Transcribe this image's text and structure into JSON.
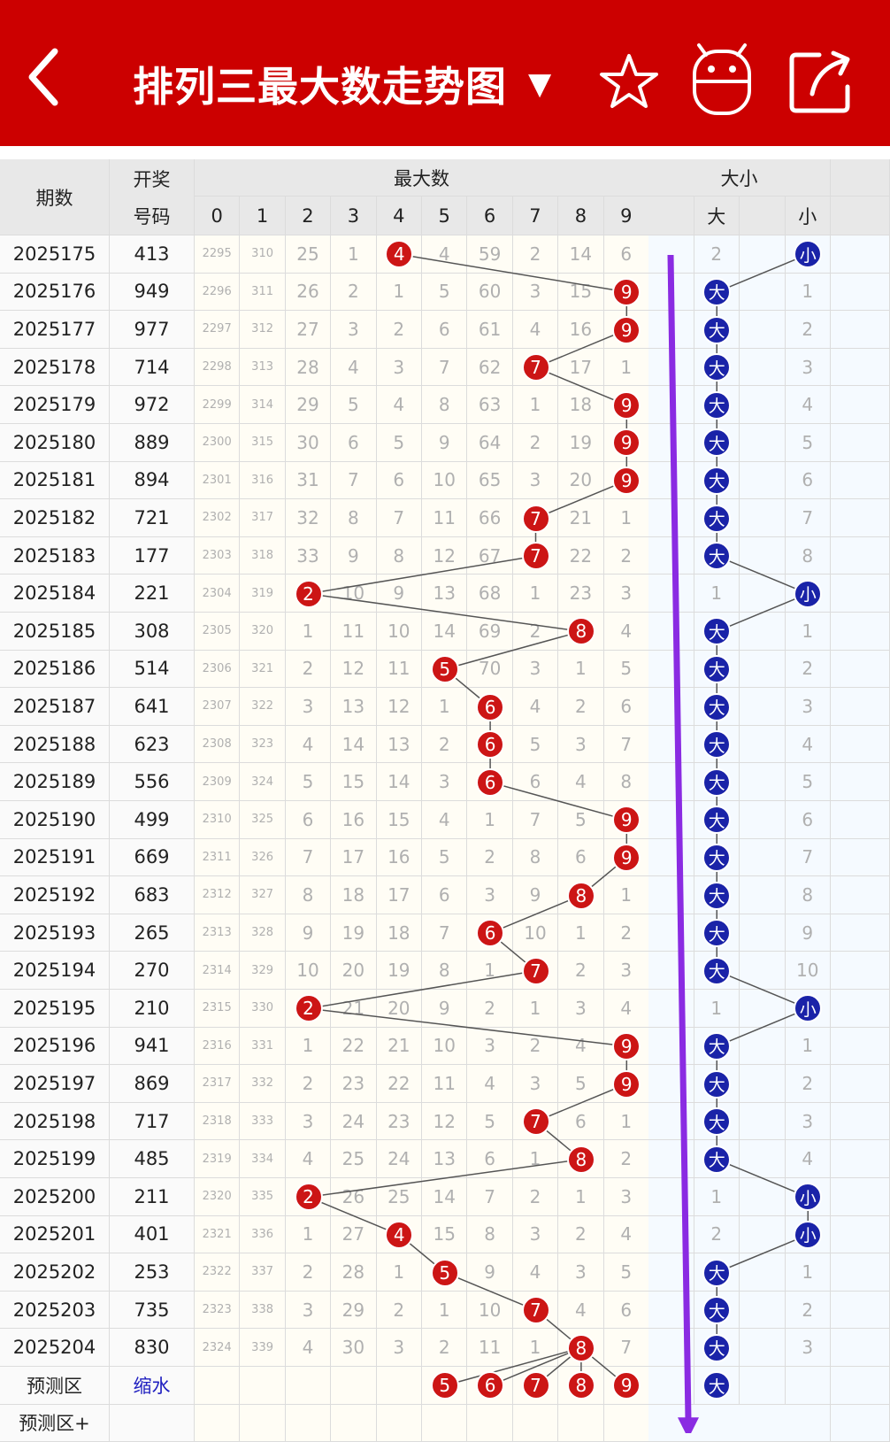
{
  "header": {
    "title": "排列三最大数走势图",
    "dropdown_caret": "▼",
    "icons": [
      "back-arrow-icon",
      "star-icon",
      "android-icon",
      "share-icon"
    ],
    "background": "#cc0000"
  },
  "table": {
    "col_issue": "期数",
    "col_code_line1": "开奖",
    "col_code_line2": "号码",
    "group_max": "最大数",
    "group_size": "大小",
    "digits": [
      "0",
      "1",
      "2",
      "3",
      "4",
      "5",
      "6",
      "7",
      "8",
      "9"
    ],
    "size_labels": [
      "大",
      "小"
    ],
    "rows": [
      {
        "issue": "2025175",
        "code": "413",
        "max": 4,
        "size": "小",
        "miss": [
          "2295",
          "310",
          "25",
          "1",
          "",
          "4",
          "59",
          "2",
          "14",
          "6"
        ],
        "big": "2",
        "small": ""
      },
      {
        "issue": "2025176",
        "code": "949",
        "max": 9,
        "size": "大",
        "miss": [
          "2296",
          "311",
          "26",
          "2",
          "1",
          "5",
          "60",
          "3",
          "15",
          ""
        ],
        "big": "",
        "small": "1"
      },
      {
        "issue": "2025177",
        "code": "977",
        "max": 9,
        "size": "大",
        "miss": [
          "2297",
          "312",
          "27",
          "3",
          "2",
          "6",
          "61",
          "4",
          "16",
          ""
        ],
        "big": "",
        "small": "2"
      },
      {
        "issue": "2025178",
        "code": "714",
        "max": 7,
        "size": "大",
        "miss": [
          "2298",
          "313",
          "28",
          "4",
          "3",
          "7",
          "62",
          "",
          "17",
          "1"
        ],
        "big": "",
        "small": "3"
      },
      {
        "issue": "2025179",
        "code": "972",
        "max": 9,
        "size": "大",
        "miss": [
          "2299",
          "314",
          "29",
          "5",
          "4",
          "8",
          "63",
          "1",
          "18",
          ""
        ],
        "big": "",
        "small": "4"
      },
      {
        "issue": "2025180",
        "code": "889",
        "max": 9,
        "size": "大",
        "miss": [
          "2300",
          "315",
          "30",
          "6",
          "5",
          "9",
          "64",
          "2",
          "19",
          ""
        ],
        "big": "",
        "small": "5"
      },
      {
        "issue": "2025181",
        "code": "894",
        "max": 9,
        "size": "大",
        "miss": [
          "2301",
          "316",
          "31",
          "7",
          "6",
          "10",
          "65",
          "3",
          "20",
          ""
        ],
        "big": "",
        "small": "6"
      },
      {
        "issue": "2025182",
        "code": "721",
        "max": 7,
        "size": "大",
        "miss": [
          "2302",
          "317",
          "32",
          "8",
          "7",
          "11",
          "66",
          "",
          "21",
          "1"
        ],
        "big": "",
        "small": "7"
      },
      {
        "issue": "2025183",
        "code": "177",
        "max": 7,
        "size": "大",
        "miss": [
          "2303",
          "318",
          "33",
          "9",
          "8",
          "12",
          "67",
          "",
          "22",
          "2"
        ],
        "big": "",
        "small": "8"
      },
      {
        "issue": "2025184",
        "code": "221",
        "max": 2,
        "size": "小",
        "miss": [
          "2304",
          "319",
          "",
          "10",
          "9",
          "13",
          "68",
          "1",
          "23",
          "3"
        ],
        "big": "1",
        "small": ""
      },
      {
        "issue": "2025185",
        "code": "308",
        "max": 8,
        "size": "大",
        "miss": [
          "2305",
          "320",
          "1",
          "11",
          "10",
          "14",
          "69",
          "2",
          "",
          "4"
        ],
        "big": "",
        "small": "1"
      },
      {
        "issue": "2025186",
        "code": "514",
        "max": 5,
        "size": "大",
        "miss": [
          "2306",
          "321",
          "2",
          "12",
          "11",
          "",
          "70",
          "3",
          "1",
          "5"
        ],
        "big": "",
        "small": "2"
      },
      {
        "issue": "2025187",
        "code": "641",
        "max": 6,
        "size": "大",
        "miss": [
          "2307",
          "322",
          "3",
          "13",
          "12",
          "1",
          "",
          "4",
          "2",
          "6"
        ],
        "big": "",
        "small": "3"
      },
      {
        "issue": "2025188",
        "code": "623",
        "max": 6,
        "size": "大",
        "miss": [
          "2308",
          "323",
          "4",
          "14",
          "13",
          "2",
          "",
          "5",
          "3",
          "7"
        ],
        "big": "",
        "small": "4"
      },
      {
        "issue": "2025189",
        "code": "556",
        "max": 6,
        "size": "大",
        "miss": [
          "2309",
          "324",
          "5",
          "15",
          "14",
          "3",
          "",
          "6",
          "4",
          "8"
        ],
        "big": "",
        "small": "5"
      },
      {
        "issue": "2025190",
        "code": "499",
        "max": 9,
        "size": "大",
        "miss": [
          "2310",
          "325",
          "6",
          "16",
          "15",
          "4",
          "1",
          "7",
          "5",
          ""
        ],
        "big": "",
        "small": "6"
      },
      {
        "issue": "2025191",
        "code": "669",
        "max": 9,
        "size": "大",
        "miss": [
          "2311",
          "326",
          "7",
          "17",
          "16",
          "5",
          "2",
          "8",
          "6",
          ""
        ],
        "big": "",
        "small": "7"
      },
      {
        "issue": "2025192",
        "code": "683",
        "max": 8,
        "size": "大",
        "miss": [
          "2312",
          "327",
          "8",
          "18",
          "17",
          "6",
          "3",
          "9",
          "",
          "1"
        ],
        "big": "",
        "small": "8"
      },
      {
        "issue": "2025193",
        "code": "265",
        "max": 6,
        "size": "大",
        "miss": [
          "2313",
          "328",
          "9",
          "19",
          "18",
          "7",
          "",
          "10",
          "1",
          "2"
        ],
        "big": "",
        "small": "9"
      },
      {
        "issue": "2025194",
        "code": "270",
        "max": 7,
        "size": "大",
        "miss": [
          "2314",
          "329",
          "10",
          "20",
          "19",
          "8",
          "1",
          "",
          "2",
          "3"
        ],
        "big": "",
        "small": "10"
      },
      {
        "issue": "2025195",
        "code": "210",
        "max": 2,
        "size": "小",
        "miss": [
          "2315",
          "330",
          "",
          "21",
          "20",
          "9",
          "2",
          "1",
          "3",
          "4"
        ],
        "big": "1",
        "small": ""
      },
      {
        "issue": "2025196",
        "code": "941",
        "max": 9,
        "size": "大",
        "miss": [
          "2316",
          "331",
          "1",
          "22",
          "21",
          "10",
          "3",
          "2",
          "4",
          ""
        ],
        "big": "",
        "small": "1"
      },
      {
        "issue": "2025197",
        "code": "869",
        "max": 9,
        "size": "大",
        "miss": [
          "2317",
          "332",
          "2",
          "23",
          "22",
          "11",
          "4",
          "3",
          "5",
          ""
        ],
        "big": "",
        "small": "2"
      },
      {
        "issue": "2025198",
        "code": "717",
        "max": 7,
        "size": "大",
        "miss": [
          "2318",
          "333",
          "3",
          "24",
          "23",
          "12",
          "5",
          "",
          "6",
          "1"
        ],
        "big": "",
        "small": "3"
      },
      {
        "issue": "2025199",
        "code": "485",
        "max": 8,
        "size": "大",
        "miss": [
          "2319",
          "334",
          "4",
          "25",
          "24",
          "13",
          "6",
          "1",
          "",
          "2"
        ],
        "big": "",
        "small": "4"
      },
      {
        "issue": "2025200",
        "code": "211",
        "max": 2,
        "size": "小",
        "miss": [
          "2320",
          "335",
          "",
          "26",
          "25",
          "14",
          "7",
          "2",
          "1",
          "3"
        ],
        "big": "1",
        "small": ""
      },
      {
        "issue": "2025201",
        "code": "401",
        "max": 4,
        "size": "小",
        "miss": [
          "2321",
          "336",
          "1",
          "27",
          "",
          "15",
          "8",
          "3",
          "2",
          "4"
        ],
        "big": "2",
        "small": ""
      },
      {
        "issue": "2025202",
        "code": "253",
        "max": 5,
        "size": "大",
        "miss": [
          "2322",
          "337",
          "2",
          "28",
          "1",
          "",
          "9",
          "4",
          "3",
          "5"
        ],
        "big": "",
        "small": "1"
      },
      {
        "issue": "2025203",
        "code": "735",
        "max": 7,
        "size": "大",
        "miss": [
          "2323",
          "338",
          "3",
          "29",
          "2",
          "1",
          "10",
          "",
          "4",
          "6"
        ],
        "big": "",
        "small": "2"
      },
      {
        "issue": "2025204",
        "code": "830",
        "max": 8,
        "size": "大",
        "miss": [
          "2324",
          "339",
          "4",
          "30",
          "3",
          "2",
          "11",
          "1",
          "",
          "7"
        ],
        "big": "",
        "small": "3"
      }
    ],
    "predict": {
      "label": "预测区",
      "action": "缩水",
      "balls": [
        "5",
        "6",
        "7",
        "8",
        "9"
      ],
      "size_ball": "大"
    },
    "predict_plus": {
      "label": "预测区+"
    }
  },
  "colors": {
    "red_ball": "#cc1515",
    "blue_ball": "#1a23a8",
    "trend_arrow": "#8a2be2",
    "missing_text": "#b0b0b0"
  }
}
